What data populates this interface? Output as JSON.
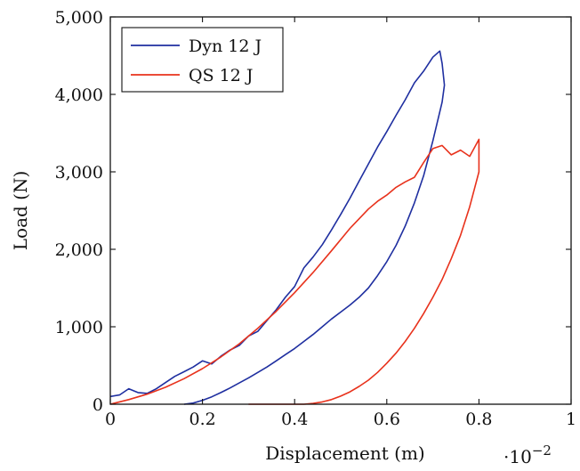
{
  "chart_data": {
    "type": "line",
    "xlabel": "Displacement (m)",
    "ylabel": "Load (N)",
    "x_scale_note": "·10",
    "x_scale_exponent": "−2",
    "xlim": [
      0,
      1
    ],
    "ylim": [
      0,
      5000
    ],
    "x_ticks": [
      0,
      0.2,
      0.4,
      0.6,
      0.8,
      1
    ],
    "x_tick_labels": [
      "0",
      "0.2",
      "0.4",
      "0.6",
      "0.8",
      "1"
    ],
    "y_ticks": [
      0,
      1000,
      2000,
      3000,
      4000,
      5000
    ],
    "y_tick_labels": [
      "0",
      "1,000",
      "2,000",
      "3,000",
      "4,000",
      "5,000"
    ],
    "grid": false,
    "legend_position": "top-left",
    "series": [
      {
        "name": "Dyn 12 J",
        "color": "#1f2fa0",
        "points": [
          [
            0,
            100
          ],
          [
            0.02,
            120
          ],
          [
            0.04,
            200
          ],
          [
            0.06,
            150
          ],
          [
            0.08,
            140
          ],
          [
            0.1,
            200
          ],
          [
            0.12,
            280
          ],
          [
            0.14,
            360
          ],
          [
            0.16,
            420
          ],
          [
            0.18,
            480
          ],
          [
            0.2,
            560
          ],
          [
            0.22,
            520
          ],
          [
            0.24,
            620
          ],
          [
            0.26,
            700
          ],
          [
            0.28,
            760
          ],
          [
            0.3,
            880
          ],
          [
            0.32,
            940
          ],
          [
            0.34,
            1080
          ],
          [
            0.36,
            1220
          ],
          [
            0.38,
            1380
          ],
          [
            0.4,
            1520
          ],
          [
            0.42,
            1760
          ],
          [
            0.44,
            1900
          ],
          [
            0.46,
            2060
          ],
          [
            0.48,
            2250
          ],
          [
            0.5,
            2450
          ],
          [
            0.52,
            2660
          ],
          [
            0.54,
            2880
          ],
          [
            0.56,
            3100
          ],
          [
            0.58,
            3320
          ],
          [
            0.6,
            3520
          ],
          [
            0.62,
            3730
          ],
          [
            0.64,
            3930
          ],
          [
            0.66,
            4150
          ],
          [
            0.68,
            4300
          ],
          [
            0.7,
            4480
          ],
          [
            0.715,
            4560
          ],
          [
            0.72,
            4400
          ],
          [
            0.725,
            4120
          ],
          [
            0.72,
            3900
          ],
          [
            0.7,
            3400
          ],
          [
            0.68,
            2950
          ],
          [
            0.66,
            2600
          ],
          [
            0.64,
            2300
          ],
          [
            0.62,
            2050
          ],
          [
            0.6,
            1840
          ],
          [
            0.58,
            1660
          ],
          [
            0.56,
            1500
          ],
          [
            0.54,
            1380
          ],
          [
            0.52,
            1280
          ],
          [
            0.5,
            1190
          ],
          [
            0.48,
            1100
          ],
          [
            0.46,
            1000
          ],
          [
            0.44,
            900
          ],
          [
            0.42,
            810
          ],
          [
            0.4,
            720
          ],
          [
            0.38,
            640
          ],
          [
            0.36,
            560
          ],
          [
            0.34,
            480
          ],
          [
            0.32,
            410
          ],
          [
            0.3,
            340
          ],
          [
            0.28,
            275
          ],
          [
            0.26,
            210
          ],
          [
            0.24,
            150
          ],
          [
            0.22,
            95
          ],
          [
            0.2,
            50
          ],
          [
            0.18,
            15
          ],
          [
            0.16,
            0
          ]
        ]
      },
      {
        "name": "QS 12 J",
        "color": "#e8321c",
        "points": [
          [
            0,
            0
          ],
          [
            0.04,
            60
          ],
          [
            0.08,
            130
          ],
          [
            0.12,
            220
          ],
          [
            0.16,
            330
          ],
          [
            0.2,
            460
          ],
          [
            0.24,
            610
          ],
          [
            0.28,
            780
          ],
          [
            0.32,
            980
          ],
          [
            0.36,
            1200
          ],
          [
            0.4,
            1440
          ],
          [
            0.44,
            1700
          ],
          [
            0.48,
            1980
          ],
          [
            0.52,
            2270
          ],
          [
            0.56,
            2520
          ],
          [
            0.58,
            2620
          ],
          [
            0.6,
            2700
          ],
          [
            0.62,
            2800
          ],
          [
            0.64,
            2870
          ],
          [
            0.66,
            2930
          ],
          [
            0.68,
            3120
          ],
          [
            0.7,
            3300
          ],
          [
            0.72,
            3340
          ],
          [
            0.74,
            3220
          ],
          [
            0.76,
            3280
          ],
          [
            0.78,
            3200
          ],
          [
            0.8,
            3420
          ],
          [
            0.8,
            3000
          ],
          [
            0.78,
            2550
          ],
          [
            0.76,
            2180
          ],
          [
            0.74,
            1880
          ],
          [
            0.72,
            1610
          ],
          [
            0.7,
            1380
          ],
          [
            0.68,
            1170
          ],
          [
            0.66,
            980
          ],
          [
            0.64,
            810
          ],
          [
            0.62,
            660
          ],
          [
            0.6,
            530
          ],
          [
            0.58,
            410
          ],
          [
            0.56,
            310
          ],
          [
            0.54,
            230
          ],
          [
            0.52,
            160
          ],
          [
            0.5,
            105
          ],
          [
            0.48,
            60
          ],
          [
            0.46,
            30
          ],
          [
            0.44,
            10
          ],
          [
            0.42,
            0
          ],
          [
            0.3,
            0
          ]
        ]
      }
    ]
  }
}
